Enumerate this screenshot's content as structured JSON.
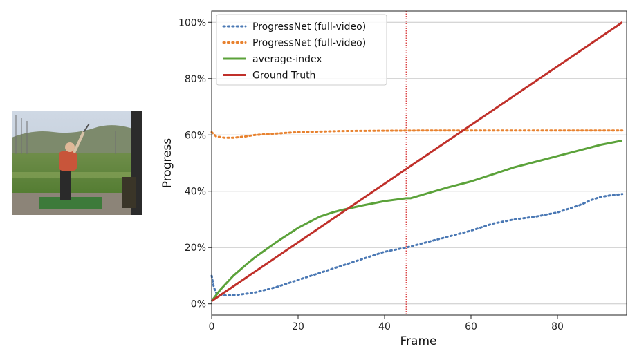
{
  "chart_data": {
    "type": "line",
    "xlabel": "Frame",
    "ylabel": "Progress",
    "xlim": [
      0,
      96
    ],
    "ylim": [
      -4,
      104
    ],
    "x_ticks": [
      0,
      20,
      40,
      60,
      80
    ],
    "y_ticks": [
      "0%",
      "20%",
      "40%",
      "60%",
      "80%",
      "100%"
    ],
    "y_tick_values": [
      0,
      20,
      40,
      60,
      80,
      100
    ],
    "grid": "horizontal",
    "legend_position": "top-left",
    "vline": {
      "x": 45,
      "color": "#d62728",
      "style": "dotted"
    },
    "series": [
      {
        "name": "ProgressNet (full-video)",
        "color": "#4a78b4",
        "style": "dotted",
        "x": [
          0,
          0.5,
          1,
          2,
          4,
          6,
          8,
          10,
          15,
          20,
          25,
          30,
          35,
          40,
          45,
          50,
          55,
          60,
          65,
          70,
          75,
          80,
          85,
          88,
          90,
          92,
          95
        ],
        "y": [
          10,
          6,
          4,
          3,
          3,
          3.2,
          3.6,
          4,
          6,
          8.5,
          11,
          13.5,
          16,
          18.5,
          20,
          22,
          24,
          26,
          28.5,
          30,
          31,
          32.5,
          35,
          37,
          38,
          38.5,
          39
        ]
      },
      {
        "name": "ProgressNet (full-video)",
        "color": "#e8822f",
        "style": "dotted",
        "x": [
          0,
          1,
          3,
          5,
          8,
          10,
          15,
          20,
          25,
          30,
          40,
          50,
          60,
          70,
          80,
          90,
          95
        ],
        "y": [
          61,
          59.5,
          59,
          59,
          59.5,
          60,
          60.5,
          61,
          61.2,
          61.4,
          61.5,
          61.6,
          61.6,
          61.6,
          61.6,
          61.6,
          61.6
        ]
      },
      {
        "name": "average-index",
        "color": "#5ba23a",
        "style": "solid",
        "x": [
          0,
          2,
          5,
          8,
          10,
          15,
          20,
          25,
          28,
          30,
          35,
          40,
          45,
          46,
          50,
          55,
          60,
          65,
          70,
          75,
          80,
          85,
          90,
          95
        ],
        "y": [
          1,
          5,
          10,
          14,
          16.5,
          22,
          27,
          31,
          32.5,
          33.3,
          35,
          36.5,
          37.5,
          37.5,
          39.3,
          41.5,
          43.5,
          46,
          48.5,
          50.5,
          52.5,
          54.5,
          56.5,
          58
        ]
      },
      {
        "name": "Ground Truth",
        "color": "#c0302a",
        "style": "solid",
        "x": [
          0,
          95
        ],
        "y": [
          1,
          100
        ]
      }
    ]
  },
  "colors": {
    "grid": "#c8c8c8",
    "axis": "#222222"
  },
  "thumbnail": {
    "icon": "golf-driving-range-photo"
  }
}
